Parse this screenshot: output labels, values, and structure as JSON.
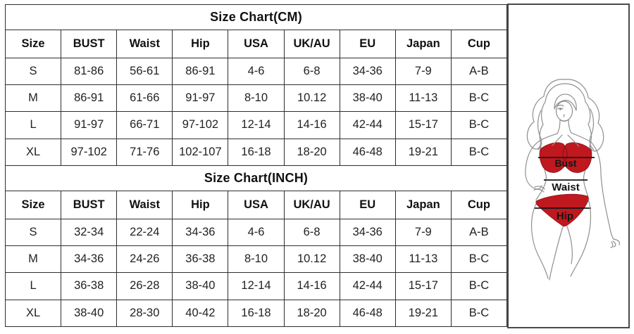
{
  "tables": [
    {
      "title": "Size Chart(CM)",
      "headers": [
        "Size",
        "BUST",
        "Waist",
        "Hip",
        "USA",
        "UK/AU",
        "EU",
        "Japan",
        "Cup"
      ],
      "rows": [
        [
          "S",
          "81-86",
          "56-61",
          "86-91",
          "4-6",
          "6-8",
          "34-36",
          "7-9",
          "A-B"
        ],
        [
          "M",
          "86-91",
          "61-66",
          "91-97",
          "8-10",
          "10.12",
          "38-40",
          "11-13",
          "B-C"
        ],
        [
          "L",
          "91-97",
          "66-71",
          "97-102",
          "12-14",
          "14-16",
          "42-44",
          "15-17",
          "B-C"
        ],
        [
          "XL",
          "97-102",
          "71-76",
          "102-107",
          "16-18",
          "18-20",
          "46-48",
          "19-21",
          "B-C"
        ]
      ]
    },
    {
      "title": "Size Chart(INCH)",
      "headers": [
        "Size",
        "BUST",
        "Waist",
        "Hip",
        "USA",
        "UK/AU",
        "EU",
        "Japan",
        "Cup"
      ],
      "rows": [
        [
          "S",
          "32-34",
          "22-24",
          "34-36",
          "4-6",
          "6-8",
          "34-36",
          "7-9",
          "A-B"
        ],
        [
          "M",
          "34-36",
          "24-26",
          "36-38",
          "8-10",
          "10.12",
          "38-40",
          "11-13",
          "B-C"
        ],
        [
          "L",
          "36-38",
          "26-28",
          "38-40",
          "12-14",
          "14-16",
          "42-44",
          "15-17",
          "B-C"
        ],
        [
          "XL",
          "38-40",
          "28-30",
          "40-42",
          "16-18",
          "18-20",
          "46-48",
          "19-21",
          "B-C"
        ]
      ]
    }
  ],
  "figure": {
    "bust_label": "Bust",
    "waist_label": "Waist",
    "hip_label": "Hip",
    "bikini_color": "#c0181f",
    "sketch_line_color": "#8f8f8f",
    "measure_line_color": "#151515"
  }
}
